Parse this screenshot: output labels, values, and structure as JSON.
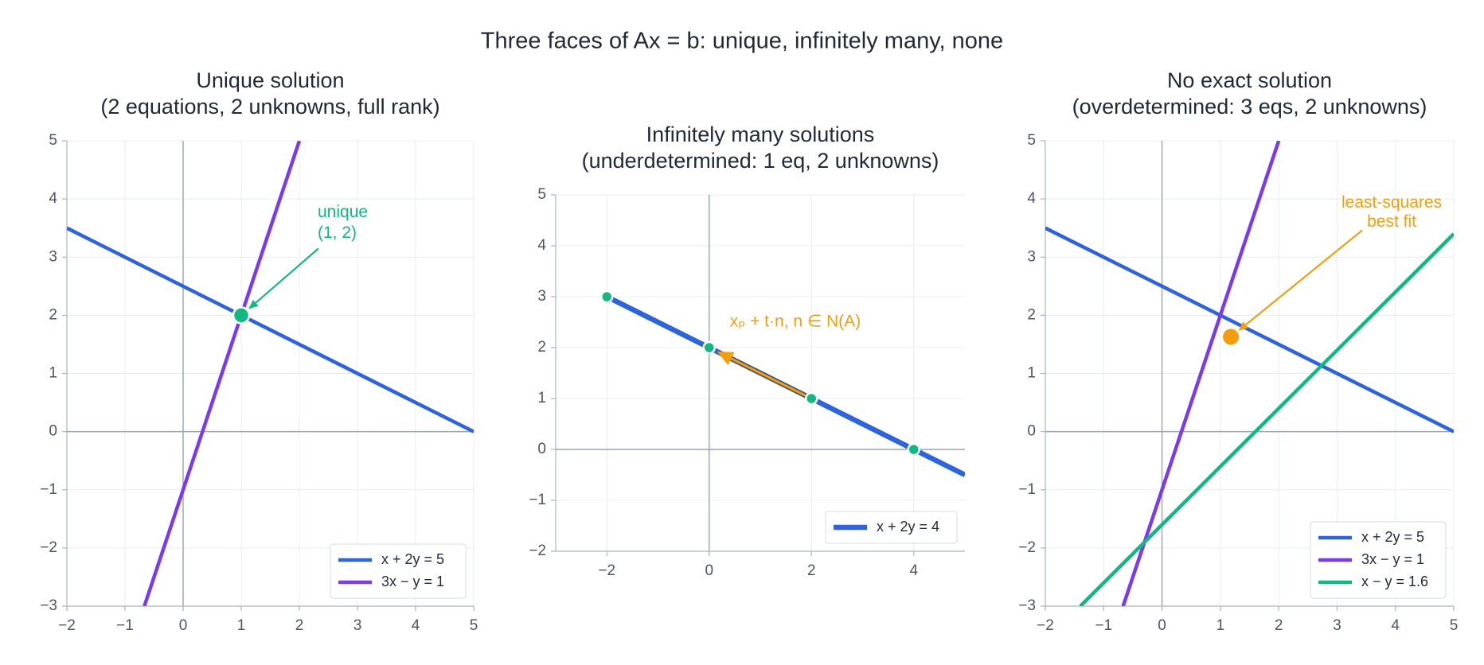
{
  "title": "Three faces of Ax = b: unique, infinitely many, none",
  "chart_data": [
    {
      "type": "line",
      "title": [
        "Unique solution",
        "(2 equations, 2 unknowns, full rank)"
      ],
      "xlim": [
        -2,
        5
      ],
      "ylim": [
        -3,
        5
      ],
      "xticks": [
        {
          "value": -2,
          "label": "−2"
        },
        {
          "value": -1,
          "label": "−1"
        },
        0,
        1,
        2,
        3,
        4,
        5
      ],
      "yticks": [
        {
          "value": -3,
          "label": "−3"
        },
        {
          "value": -2,
          "label": "−2"
        },
        {
          "value": -1,
          "label": "−1"
        },
        0,
        1,
        2,
        3,
        4,
        5
      ],
      "grid": true,
      "legend": "lower right",
      "series": [
        {
          "name": "x + 2y = 5",
          "color": "#2b63e0",
          "x": [
            -2,
            5
          ],
          "values": [
            3.5,
            0
          ]
        },
        {
          "name": "3x − y = 1",
          "color": "#7c3aed",
          "x": [
            -0.667,
            2
          ],
          "values": [
            -3,
            5
          ]
        }
      ],
      "points": {
        "color": "#10b981",
        "x": [
          1
        ],
        "y": [
          2
        ]
      },
      "annotation": {
        "color": "#10b981",
        "text": [
          "unique",
          "(1, 2)"
        ]
      }
    },
    {
      "type": "line",
      "title": [
        "Infinitely many solutions",
        "(underdetermined: 1 eq, 2 unknowns)"
      ],
      "xlim": [
        -3,
        5
      ],
      "ylim": [
        -2,
        5
      ],
      "xticks": [
        {
          "value": -2,
          "label": "−2"
        },
        0,
        2,
        4
      ],
      "yticks": [
        {
          "value": -2,
          "label": "−2"
        },
        {
          "value": -1,
          "label": "−1"
        },
        0,
        1,
        2,
        3,
        4,
        5
      ],
      "grid": true,
      "legend": "lower right",
      "series": [
        {
          "name": "x + 2y = 4",
          "color": "#2b63e0",
          "x": [
            -2,
            5
          ],
          "values": [
            3,
            -0.5
          ]
        }
      ],
      "points": {
        "color": "#10b981",
        "x": [
          -2,
          0,
          2,
          4
        ],
        "y": [
          3,
          2,
          1,
          0
        ]
      },
      "arrow": {
        "color": "#f59e0b",
        "from": [
          2,
          1
        ],
        "to": [
          0,
          2
        ]
      },
      "annotation": {
        "color": "#f59e0b",
        "text": [
          "xₚ + t·n,  n ∈ N(A)"
        ]
      }
    },
    {
      "type": "line",
      "title": [
        "No exact solution",
        "(overdetermined: 3 eqs, 2 unknowns)"
      ],
      "xlim": [
        -2,
        5
      ],
      "ylim": [
        -3,
        5
      ],
      "xticks": [
        {
          "value": -2,
          "label": "−2"
        },
        {
          "value": -1,
          "label": "−1"
        },
        0,
        1,
        2,
        3,
        4,
        5
      ],
      "yticks": [
        {
          "value": -3,
          "label": "−3"
        },
        {
          "value": -2,
          "label": "−2"
        },
        {
          "value": -1,
          "label": "−1"
        },
        0,
        1,
        2,
        3,
        4,
        5
      ],
      "grid": true,
      "legend": "lower right",
      "series": [
        {
          "name": "x + 2y = 5",
          "color": "#2b63e0",
          "x": [
            -2,
            5
          ],
          "values": [
            3.5,
            0
          ]
        },
        {
          "name": "3x − y = 1",
          "color": "#7c3aed",
          "x": [
            -0.667,
            2
          ],
          "values": [
            -3,
            5
          ]
        },
        {
          "name": "x − y = 1.6",
          "color": "#10b981",
          "x": [
            -1.4,
            5
          ],
          "values": [
            -3,
            3.4
          ]
        }
      ],
      "points": {
        "color": "#f59e0b",
        "x": [
          1.18
        ],
        "y": [
          1.63
        ]
      },
      "annotation": {
        "color": "#f59e0b",
        "text": [
          "least-squares",
          "best fit"
        ]
      }
    }
  ]
}
